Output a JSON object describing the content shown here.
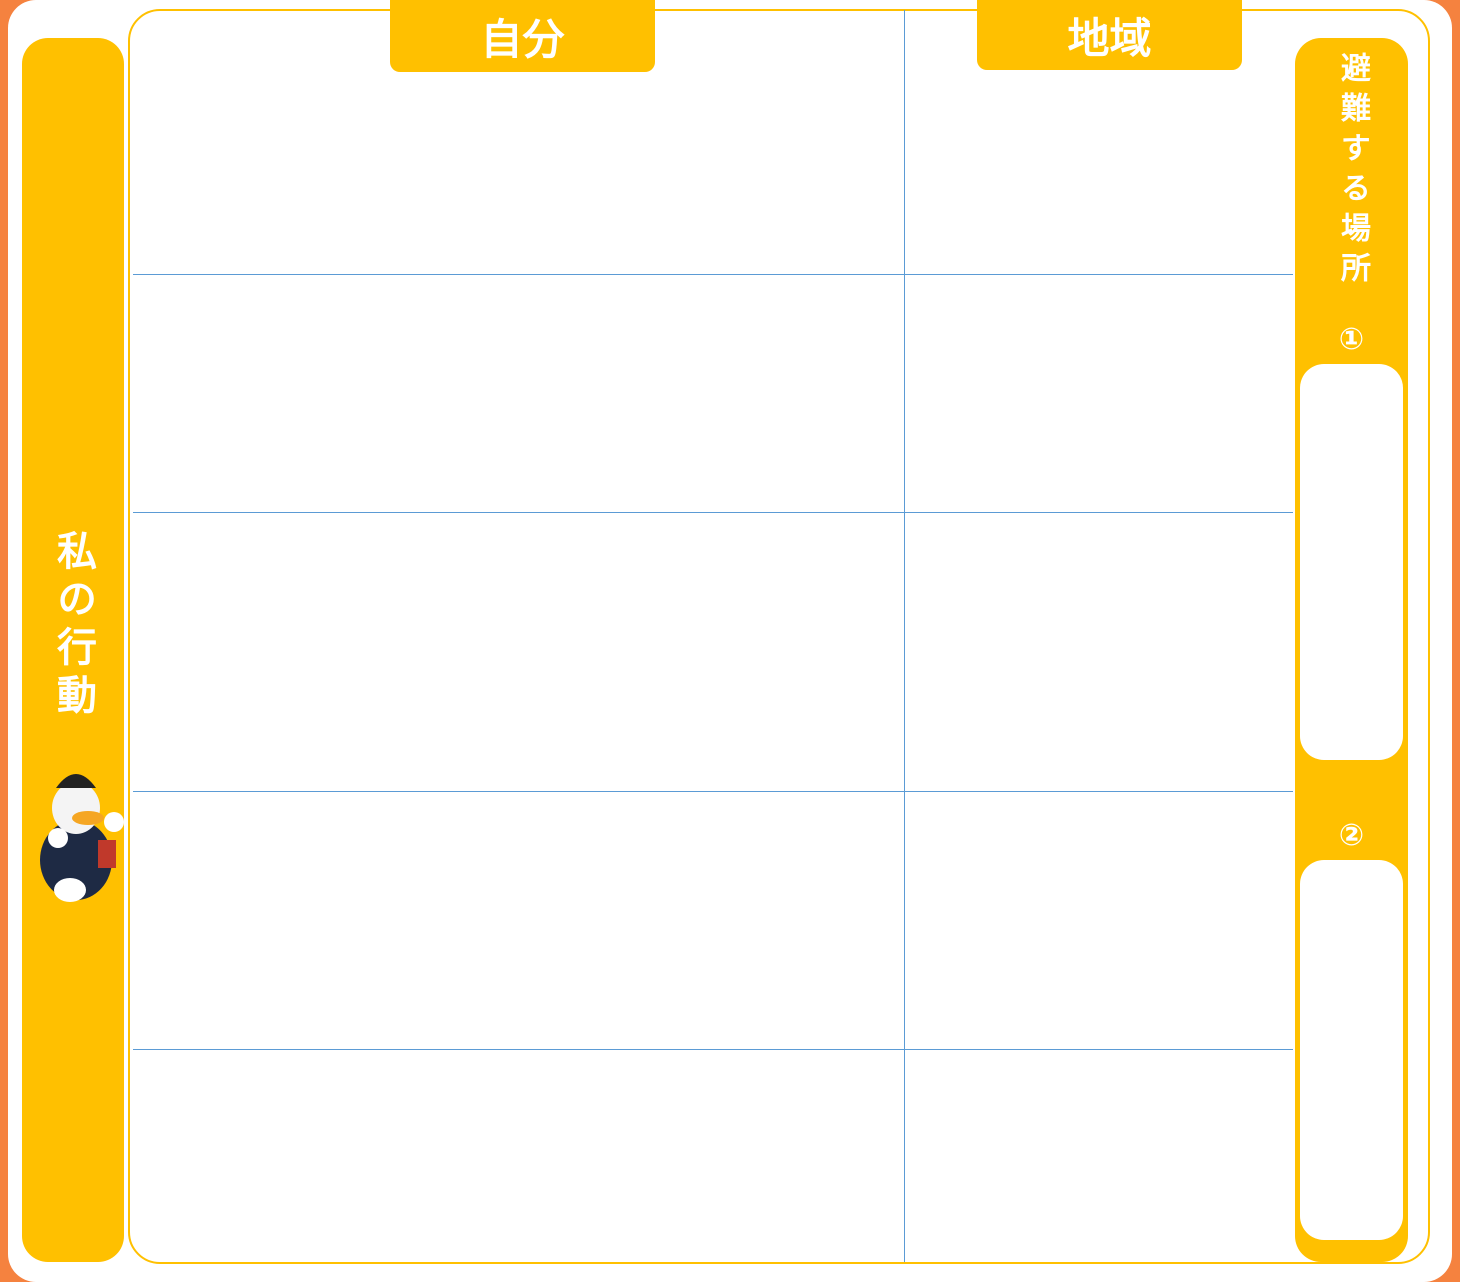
{
  "left_label": "私の行動",
  "headers": {
    "self": "自分",
    "community": "地域"
  },
  "right_label": "避難する場所",
  "places": [
    "①",
    "②"
  ]
}
